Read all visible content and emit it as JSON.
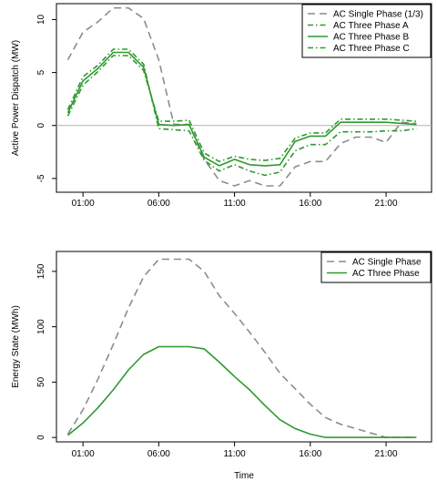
{
  "chart_data": [
    {
      "type": "line",
      "title": "",
      "xlabel": "",
      "ylabel": "Active Power Dispatch (MW)",
      "x_ticks": [
        "01:00",
        "06:00",
        "11:00",
        "16:00",
        "21:00"
      ],
      "y_ticks": [
        "-5",
        "0",
        "5",
        "10"
      ],
      "xlim_hours": [
        -0.75,
        24.0
      ],
      "ylim": [
        -6.3,
        11.5
      ],
      "zero_line": true,
      "legend_position": "top-right",
      "x_hours": [
        0,
        1,
        2,
        3,
        4,
        5,
        6,
        7,
        8,
        9,
        10,
        11,
        12,
        13,
        14,
        15,
        16,
        17,
        18,
        19,
        20,
        21,
        22,
        23
      ],
      "series": [
        {
          "name": "AC Single Phase (1/3)",
          "color": "#8c8c8c",
          "dash": "dashed",
          "values": [
            6.2,
            8.8,
            9.8,
            11.1,
            11.1,
            10.1,
            6.2,
            0.1,
            0.1,
            -3.2,
            -5.2,
            -5.7,
            -5.2,
            -5.7,
            -5.7,
            -3.9,
            -3.4,
            -3.4,
            -1.7,
            -1.1,
            -1.1,
            -1.6,
            0.3,
            0.2
          ]
        },
        {
          "name": "AC Three Phase A",
          "color": "#2e9a2e",
          "dash": "dotdash",
          "values": [
            1.5,
            4.6,
            5.7,
            7.2,
            7.2,
            5.8,
            -0.3,
            -0.4,
            -0.5,
            -3.3,
            -4.3,
            -3.7,
            -4.3,
            -4.7,
            -4.4,
            -2.4,
            -1.8,
            -1.8,
            -0.6,
            -0.6,
            -0.6,
            -0.5,
            -0.5,
            -0.3
          ]
        },
        {
          "name": "AC Three Phase B",
          "color": "#2e9a2e",
          "dash": "solid",
          "values": [
            1.2,
            4.2,
            5.4,
            6.9,
            6.9,
            5.5,
            0.1,
            0.0,
            0.1,
            -3.0,
            -3.8,
            -3.2,
            -3.7,
            -3.8,
            -3.7,
            -1.5,
            -1.0,
            -1.0,
            0.3,
            0.3,
            0.3,
            0.3,
            0.2,
            0.1
          ]
        },
        {
          "name": "AC Three Phase C",
          "color": "#2e9a2e",
          "dash": "dotdash",
          "values": [
            0.9,
            3.8,
            5.1,
            6.6,
            6.6,
            5.2,
            0.4,
            0.4,
            0.5,
            -2.6,
            -3.4,
            -2.9,
            -3.2,
            -3.3,
            -3.1,
            -1.2,
            -0.7,
            -0.7,
            0.6,
            0.6,
            0.6,
            0.6,
            0.5,
            0.4
          ]
        }
      ]
    },
    {
      "type": "line",
      "title": "",
      "xlabel": "Time",
      "ylabel": "Energy State (MWh)",
      "x_ticks": [
        "01:00",
        "06:00",
        "11:00",
        "16:00",
        "21:00"
      ],
      "y_ticks": [
        "0",
        "50",
        "100",
        "150"
      ],
      "xlim_hours": [
        -0.75,
        24.0
      ],
      "ylim": [
        -4,
        168
      ],
      "zero_line": false,
      "legend_position": "top-right",
      "x_hours": [
        0,
        1,
        2,
        3,
        4,
        5,
        6,
        7,
        8,
        9,
        10,
        11,
        12,
        13,
        14,
        15,
        16,
        17,
        18,
        19,
        20,
        21,
        22,
        23
      ],
      "series": [
        {
          "name": "AC Single Phase",
          "color": "#8c8c8c",
          "dash": "dashed",
          "values": [
            3,
            25,
            53,
            84,
            117,
            145,
            161,
            161,
            161,
            150,
            128,
            112,
            95,
            77,
            58,
            44,
            30,
            18,
            12,
            8,
            4,
            0,
            0,
            0
          ]
        },
        {
          "name": "AC Three Phase",
          "color": "#2e9a2e",
          "dash": "solid",
          "values": [
            2,
            13,
            27,
            43,
            61,
            75,
            82,
            82,
            82,
            80,
            68,
            55,
            43,
            29,
            16,
            8,
            3,
            0,
            0,
            0,
            0,
            0,
            0,
            0
          ]
        }
      ]
    }
  ]
}
